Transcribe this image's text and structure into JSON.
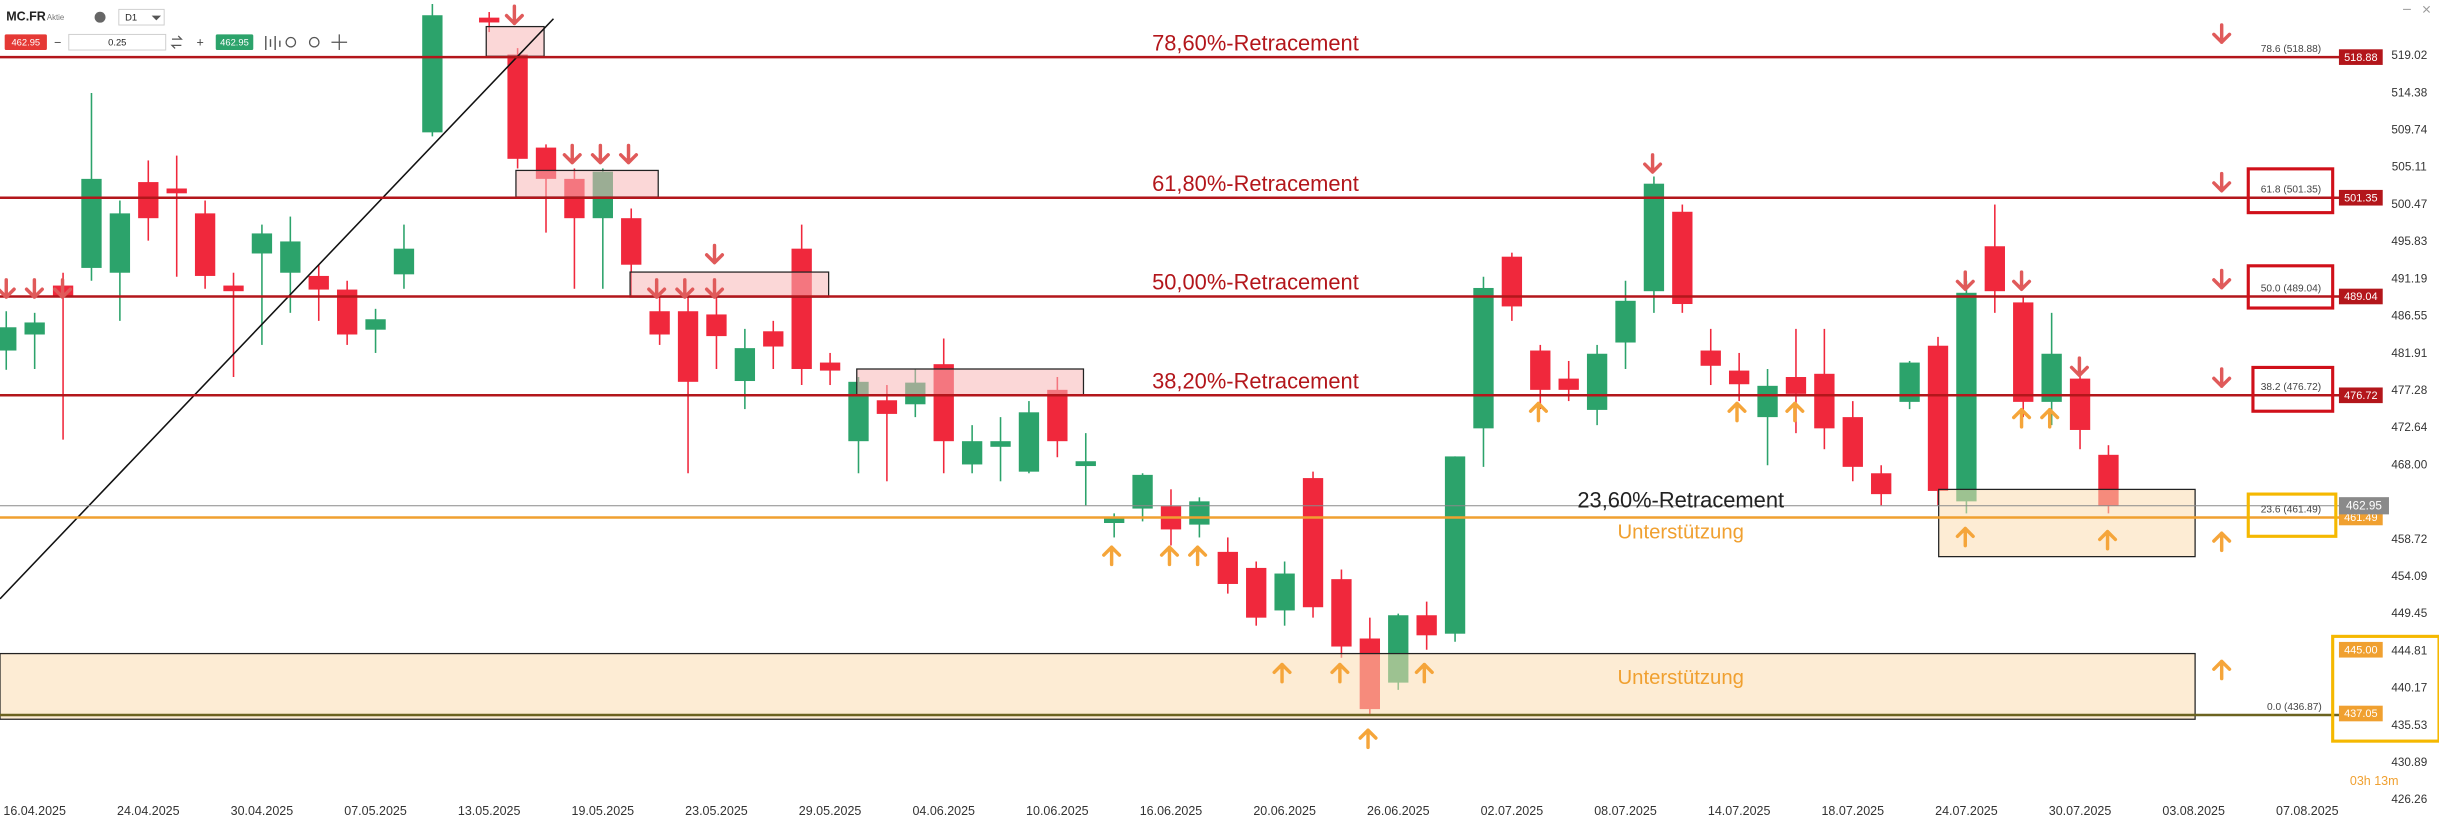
{
  "chart_data": {
    "type": "candlestick",
    "symbol": "MC.FR",
    "instrument_type": "Aktie",
    "timeframe": "D1",
    "bid": 462.95,
    "ask": 462.95,
    "quantity": 0.25,
    "up_color": "#2ca36b",
    "down_color": "#f0283c",
    "categories": [
      null,
      "16.04.2025",
      null,
      null,
      null,
      "24.04.2025",
      null,
      null,
      null,
      "30.04.2025",
      null,
      null,
      null,
      "07.05.2025",
      null,
      null,
      null,
      "13.05.2025",
      null,
      null,
      null,
      "19.05.2025",
      null,
      null,
      null,
      "23.05.2025",
      null,
      null,
      null,
      "29.05.2025",
      null,
      null,
      null,
      "04.06.2025",
      null,
      null,
      null,
      "10.06.2025",
      null,
      null,
      null,
      "16.06.2025",
      null,
      null,
      null,
      "20.06.2025",
      null,
      null,
      null,
      "26.06.2025",
      null,
      null,
      null,
      "02.07.2025",
      null,
      null,
      null,
      "08.07.2025",
      null,
      null,
      null,
      "14.07.2025",
      null,
      null,
      null,
      "18.07.2025",
      null,
      null,
      null,
      "24.07.2025",
      null,
      null,
      null,
      "30.07.2025",
      null,
      null,
      null,
      "03.08.2025",
      null,
      null,
      null,
      "07.08.2025",
      null,
      null
    ],
    "open": [
      482.3,
      484.3,
      490.4,
      492.6,
      492.0,
      503.3,
      502.5,
      499.4,
      490.4,
      494.4,
      492.0,
      491.6,
      489.9,
      484.9,
      491.8,
      509.5,
      null,
      523.8,
      519.2,
      507.6,
      503.7,
      498.8,
      498.8,
      487.2,
      487.2,
      486.8,
      478.5,
      484.7,
      495.0,
      480.8,
      471.0,
      476.1,
      475.6,
      480.6,
      468.1,
      470.3,
      467.2,
      477.4,
      467.9,
      460.8,
      462.6,
      462.9,
      460.6,
      457.2,
      455.2,
      449.9,
      466.4,
      453.8,
      446.4,
      440.9,
      449.3,
      447.0,
      472.6,
      494.0,
      482.3,
      478.8,
      474.9,
      483.3,
      489.7,
      499.6,
      482.3,
      479.8,
      474.0,
      479.0,
      479.4,
      474.0,
      467.0,
      475.9,
      482.9,
      463.5,
      495.3,
      488.3,
      475.9,
      478.8,
      469.3,
      null,
      null,
      null,
      null,
      null,
      null,
      null,
      null,
      null
    ],
    "high": [
      487.2,
      487.0,
      492.0,
      514.4,
      501.0,
      506.0,
      506.6,
      501.0,
      492.0,
      498.0,
      499.0,
      493.0,
      491.0,
      487.5,
      498.0,
      525.5,
      null,
      524.5,
      520.0,
      508.0,
      505.0,
      505.0,
      500.0,
      489.0,
      489.0,
      489.0,
      485.0,
      486.0,
      498.0,
      482.0,
      479.0,
      478.0,
      480.0,
      483.8,
      473.0,
      474.0,
      476.0,
      479.0,
      472.0,
      462.0,
      467.0,
      465.0,
      464.0,
      459.0,
      456.0,
      456.0,
      467.2,
      455.0,
      449.0,
      449.5,
      451.0,
      469.1,
      491.5,
      494.5,
      483.0,
      481.0,
      483.0,
      491.0,
      504.0,
      500.5,
      485.0,
      482.0,
      480.0,
      485.0,
      485.0,
      476.0,
      468.0,
      481.0,
      484.0,
      491.0,
      500.5,
      489.0,
      487.0,
      480.0,
      470.5,
      null,
      null,
      null,
      null,
      null,
      null,
      null,
      null,
      null
    ],
    "low": [
      479.9,
      480.0,
      471.2,
      491.0,
      486.0,
      496.0,
      491.5,
      490.0,
      479.0,
      483.0,
      487.0,
      486.0,
      483.0,
      482.0,
      490.0,
      509.0,
      null,
      522.0,
      505.0,
      497.0,
      490.0,
      490.0,
      489.0,
      483.0,
      467.0,
      480.0,
      475.0,
      480.0,
      478.0,
      478.0,
      467.0,
      466.0,
      474.0,
      467.0,
      467.0,
      466.0,
      467.0,
      469.0,
      463.0,
      459.0,
      461.0,
      458.0,
      459.0,
      452.0,
      448.0,
      448.0,
      449.0,
      444.0,
      437.0,
      440.0,
      445.0,
      446.0,
      467.8,
      486.0,
      475.0,
      476.0,
      473.0,
      480.0,
      487.0,
      487.0,
      478.0,
      476.0,
      468.0,
      472.0,
      470.0,
      466.0,
      463.0,
      475.0,
      463.0,
      462.0,
      487.0,
      474.0,
      473.0,
      470.0,
      462.0,
      null,
      null,
      null,
      null,
      null,
      null,
      null,
      null,
      null
    ],
    "close": [
      485.2,
      485.8,
      489.0,
      503.7,
      499.4,
      498.8,
      501.9,
      491.6,
      489.7,
      496.9,
      495.9,
      489.9,
      484.3,
      486.2,
      495.0,
      524.1,
      null,
      523.2,
      506.2,
      503.7,
      498.8,
      504.6,
      493.0,
      484.3,
      478.4,
      484.1,
      482.6,
      482.8,
      480.0,
      479.8,
      478.4,
      474.4,
      478.3,
      471.0,
      471.0,
      471.0,
      474.6,
      471.0,
      468.5,
      461.4,
      466.8,
      460.0,
      463.5,
      453.2,
      449.0,
      454.5,
      450.3,
      445.4,
      437.6,
      449.3,
      446.8,
      469.1,
      490.1,
      487.8,
      477.4,
      477.4,
      481.9,
      488.5,
      503.1,
      488.1,
      480.4,
      478.1,
      477.9,
      476.9,
      472.6,
      467.8,
      464.4,
      480.8,
      464.8,
      489.5,
      489.7,
      475.9,
      481.9,
      472.4,
      462.95,
      null,
      null,
      null,
      null,
      null,
      null,
      null,
      null,
      null
    ],
    "ylim": [
      426.2,
      526.0
    ],
    "yticks": [
      519.02,
      514.38,
      509.74,
      505.11,
      500.47,
      495.83,
      491.19,
      486.55,
      481.91,
      477.28,
      472.64,
      {
        "value": 468,
        "label": "468.00"
      },
      458.72,
      454.09,
      449.45,
      444.81,
      440.17,
      435.53,
      430.89,
      426.26
    ],
    "grid": false,
    "current_price": 462.95,
    "current_price_color": "#8a8a8a",
    "levels": [
      {
        "label": "78,60%-Retracement",
        "ratio_label": "78.6 (518.88)",
        "value": 518.88,
        "color": "#b3161b",
        "label_color": "#b3161b",
        "tag_color": "#b3161b"
      },
      {
        "label": "61,80%-Retracement",
        "ratio_label": "61.8 (501.35)",
        "value": 501.35,
        "color": "#b3161b",
        "label_color": "#b3161b",
        "tag_color": "#b3161b"
      },
      {
        "label": "50,00%-Retracement",
        "ratio_label": "50.0 (489.04)",
        "value": 489.04,
        "color": "#b3161b",
        "label_color": "#b3161b",
        "tag_color": "#b3161b"
      },
      {
        "label": "38,20%-Retracement",
        "ratio_label": "38.2 (476.72)",
        "value": 476.72,
        "color": "#b3161b",
        "label_color": "#b3161b",
        "tag_color": "#b3161b"
      },
      {
        "label": "23,60%-Retracement",
        "ratio_label": "23.6 (461.49)",
        "value": 461.49,
        "color": "#f0a030",
        "label_color": "#222222",
        "tag_color": "#f0a030"
      },
      {
        "ratio_label": "0.0 (436.87)",
        "value": 436.87,
        "color": "#6b6320"
      }
    ],
    "price_tags": [
      {
        "value": 445,
        "label": "445.00"
      },
      437.05
    ],
    "price_tag_color": "#f0a030",
    "annotations": [
      "Unterstützung",
      "Unterstützung"
    ],
    "timer": "03h 13m"
  }
}
